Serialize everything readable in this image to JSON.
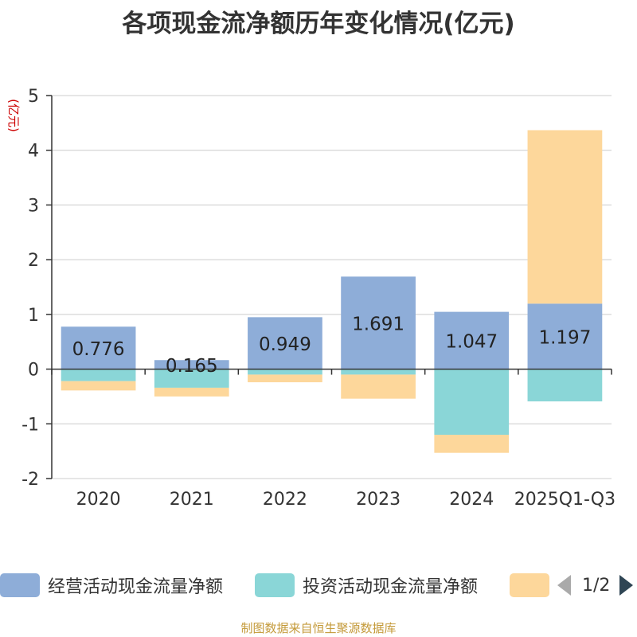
{
  "chart_data": {
    "type": "bar",
    "title": "各项现金流净额历年变化情况(亿元)",
    "ylabel": "(亿元)",
    "ylim": [
      -2,
      5
    ],
    "yticks": [
      -2,
      -1,
      0,
      1,
      2,
      3,
      4,
      5
    ],
    "stacked": true,
    "categories": [
      "2020",
      "2021",
      "2022",
      "2023",
      "2024",
      "2025Q1-Q3"
    ],
    "series": [
      {
        "name": "经营活动现金流量净额",
        "color": "#8eadd8",
        "values": [
          0.776,
          0.165,
          0.949,
          1.691,
          1.047,
          1.197
        ],
        "show_labels": true
      },
      {
        "name": "投资活动现金流量净额",
        "color": "#8ad6d7",
        "values": [
          -0.22,
          -0.34,
          -0.1,
          -0.1,
          -1.2,
          -0.59
        ],
        "show_labels": false
      },
      {
        "name": "",
        "color": "#fdd79b",
        "values": [
          -0.17,
          -0.16,
          -0.14,
          -0.44,
          -0.33,
          3.17
        ],
        "show_labels": false
      }
    ],
    "legend_position": "bottom"
  },
  "legend": {
    "items": [
      "经营活动现金流量净额",
      "投资活动现金流量净额"
    ],
    "page": "1/2"
  },
  "source": "制图数据来自恒生聚源数据库"
}
